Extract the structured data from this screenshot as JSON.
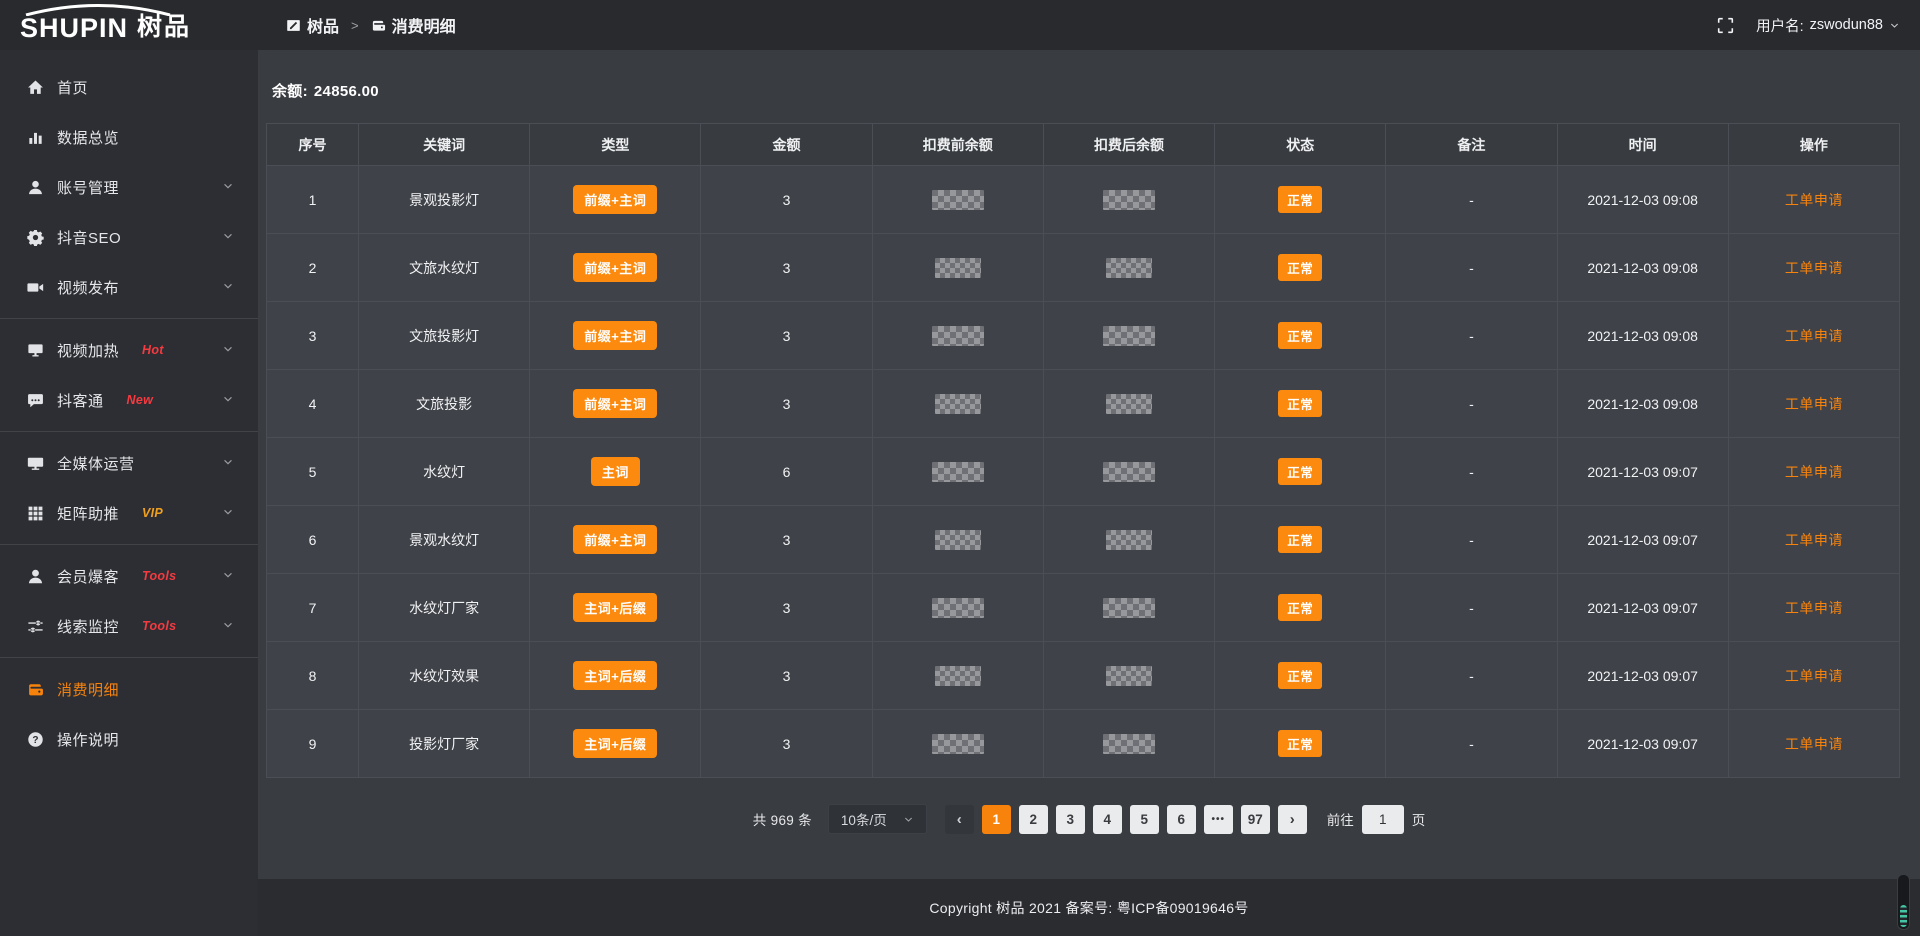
{
  "header": {
    "logo": {
      "en": "SHUPIN",
      "cn": "树品"
    },
    "breadcrumb": {
      "root": "树品",
      "separator": ">",
      "current": "消费明细"
    },
    "user": {
      "label": "用户名:",
      "name": "zswodun88"
    }
  },
  "sidebar": {
    "items": [
      {
        "id": "home",
        "icon": "home",
        "label": "首页"
      },
      {
        "id": "data-overview",
        "icon": "bar-chart",
        "label": "数据总览"
      },
      {
        "id": "account-manage",
        "icon": "user",
        "label": "账号管理",
        "chevron": true
      },
      {
        "id": "douyin-seo",
        "icon": "gear",
        "label": "抖音SEO",
        "chevron": true
      },
      {
        "id": "video-publish",
        "icon": "video-camera",
        "label": "视频发布",
        "chevron": true
      },
      {
        "divider": true
      },
      {
        "id": "video-heat",
        "icon": "screen",
        "label": "视频加热",
        "tag": "Hot",
        "tag_style": "red",
        "chevron": true
      },
      {
        "id": "douketong",
        "icon": "chat",
        "label": "抖客通",
        "tag": "New",
        "tag_style": "red",
        "chevron": true
      },
      {
        "divider": true
      },
      {
        "id": "media-operation",
        "icon": "monitor",
        "label": "全媒体运营",
        "chevron": true
      },
      {
        "id": "matrix-boost",
        "icon": "grid",
        "label": "矩阵助推",
        "tag": "VIP",
        "tag_style": "vip",
        "chevron": true
      },
      {
        "divider": true
      },
      {
        "id": "member-baoke",
        "icon": "user-solid",
        "label": "会员爆客",
        "tag": "Tools",
        "tag_style": "red",
        "chevron": true
      },
      {
        "id": "clue-monitor",
        "icon": "sliders",
        "label": "线索监控",
        "tag": "Tools",
        "tag_style": "red",
        "chevron": true
      },
      {
        "divider": true
      },
      {
        "id": "consume-detail",
        "icon": "wallet",
        "label": "消费明细",
        "active": true
      },
      {
        "id": "help",
        "icon": "question",
        "label": "操作说明"
      }
    ]
  },
  "main": {
    "balance": {
      "label": "余额:",
      "value": "24856.00"
    },
    "table": {
      "columns": [
        "序号",
        "关键词",
        "类型",
        "金额",
        "扣费前余额",
        "扣费后余额",
        "状态",
        "备注",
        "时间",
        "操作"
      ],
      "masked_columns": [
        "扣费前余额",
        "扣费后余额"
      ],
      "rows": [
        {
          "no": "1",
          "keyword": "景观投影灯",
          "type": "前缀+主词",
          "amount": "3",
          "status": "正常",
          "remark": "-",
          "time": "2021-12-03 09:08",
          "action": "工单申请"
        },
        {
          "no": "2",
          "keyword": "文旅水纹灯",
          "type": "前缀+主词",
          "amount": "3",
          "status": "正常",
          "remark": "-",
          "time": "2021-12-03 09:08",
          "action": "工单申请"
        },
        {
          "no": "3",
          "keyword": "文旅投影灯",
          "type": "前缀+主词",
          "amount": "3",
          "status": "正常",
          "remark": "-",
          "time": "2021-12-03 09:08",
          "action": "工单申请"
        },
        {
          "no": "4",
          "keyword": "文旅投影",
          "type": "前缀+主词",
          "amount": "3",
          "status": "正常",
          "remark": "-",
          "time": "2021-12-03 09:08",
          "action": "工单申请"
        },
        {
          "no": "5",
          "keyword": "水纹灯",
          "type": "主词",
          "amount": "6",
          "status": "正常",
          "remark": "-",
          "time": "2021-12-03 09:07",
          "action": "工单申请"
        },
        {
          "no": "6",
          "keyword": "景观水纹灯",
          "type": "前缀+主词",
          "amount": "3",
          "status": "正常",
          "remark": "-",
          "time": "2021-12-03 09:07",
          "action": "工单申请"
        },
        {
          "no": "7",
          "keyword": "水纹灯厂家",
          "type": "主词+后缀",
          "amount": "3",
          "status": "正常",
          "remark": "-",
          "time": "2021-12-03 09:07",
          "action": "工单申请"
        },
        {
          "no": "8",
          "keyword": "水纹灯效果",
          "type": "主词+后缀",
          "amount": "3",
          "status": "正常",
          "remark": "-",
          "time": "2021-12-03 09:07",
          "action": "工单申请"
        },
        {
          "no": "9",
          "keyword": "投影灯厂家",
          "type": "主词+后缀",
          "amount": "3",
          "status": "正常",
          "remark": "-",
          "time": "2021-12-03 09:07",
          "action": "工单申请"
        }
      ]
    },
    "pagination": {
      "total": "共 969 条",
      "page_size": "10条/页",
      "prev": "‹",
      "next": "›",
      "pages": [
        "1",
        "2",
        "3",
        "4",
        "5",
        "6",
        "•••",
        "97"
      ],
      "active_page": "1",
      "goto": {
        "label": "前往",
        "value": "1",
        "suffix": "页"
      }
    }
  },
  "footer": {
    "copyright": "Copyright 树品 2021 备案号: 粤ICP备09019646号"
  },
  "colors": {
    "accent": "#f7830d",
    "badge": "#fb8a0e",
    "tag_red": "#f53a40",
    "tag_vip": "#f0a020",
    "status_normal": "#fb8a0e"
  }
}
